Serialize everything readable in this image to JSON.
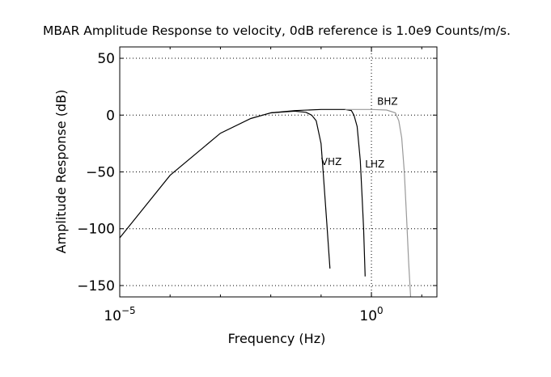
{
  "chart_data": {
    "type": "line",
    "title": "MBAR Amplitude Response to velocity, 0dB reference is 1.0e9 Counts/m/s.",
    "xlabel": "Frequency (Hz)",
    "ylabel": "Amplitude Response (dB)",
    "x_scale": "log",
    "xlim": [
      1e-05,
      20
    ],
    "ylim": [
      -160,
      60
    ],
    "grid": true,
    "x_ticks": [
      {
        "value": 1e-05,
        "base": "10",
        "exp": "−5"
      },
      {
        "value": 1,
        "base": "10",
        "exp": "0"
      }
    ],
    "y_ticks": [
      {
        "value": 50,
        "label": "50"
      },
      {
        "value": 0,
        "label": "0"
      },
      {
        "value": -50,
        "label": "−50"
      },
      {
        "value": -100,
        "label": "−100"
      },
      {
        "value": -150,
        "label": "−150"
      }
    ],
    "series": [
      {
        "name": "VHZ",
        "color": "#000000",
        "points": [
          [
            1e-05,
            -108
          ],
          [
            0.0001,
            -53
          ],
          [
            0.001,
            -16
          ],
          [
            0.004,
            -3
          ],
          [
            0.01,
            2
          ],
          [
            0.02,
            3
          ],
          [
            0.03,
            3.5
          ],
          [
            0.05,
            2.5
          ],
          [
            0.065,
            0
          ],
          [
            0.08,
            -5
          ],
          [
            0.1,
            -25
          ],
          [
            0.11,
            -50
          ],
          [
            0.13,
            -95
          ],
          [
            0.15,
            -135
          ]
        ],
        "label": {
          "text": "VHZ",
          "x": 0.1,
          "y": -44
        }
      },
      {
        "name": "LHZ",
        "color": "#000000",
        "points": [
          [
            0.01,
            2
          ],
          [
            0.03,
            4
          ],
          [
            0.1,
            5
          ],
          [
            0.3,
            5
          ],
          [
            0.4,
            4
          ],
          [
            0.45,
            0
          ],
          [
            0.52,
            -10
          ],
          [
            0.6,
            -40
          ],
          [
            0.65,
            -70
          ],
          [
            0.7,
            -100
          ],
          [
            0.75,
            -142
          ]
        ],
        "label": {
          "text": "LHZ",
          "x": 0.75,
          "y": -46
        }
      },
      {
        "name": "BHZ",
        "color": "#999999",
        "points": [
          [
            0.3,
            5
          ],
          [
            1,
            5
          ],
          [
            2,
            4.5
          ],
          [
            3,
            2
          ],
          [
            3.5,
            -5
          ],
          [
            4,
            -20
          ],
          [
            4.5,
            -50
          ],
          [
            5,
            -90
          ],
          [
            5.5,
            -130
          ],
          [
            6,
            -160
          ]
        ],
        "label": {
          "text": "BHZ",
          "x": 1.3,
          "y": 9
        }
      }
    ]
  }
}
